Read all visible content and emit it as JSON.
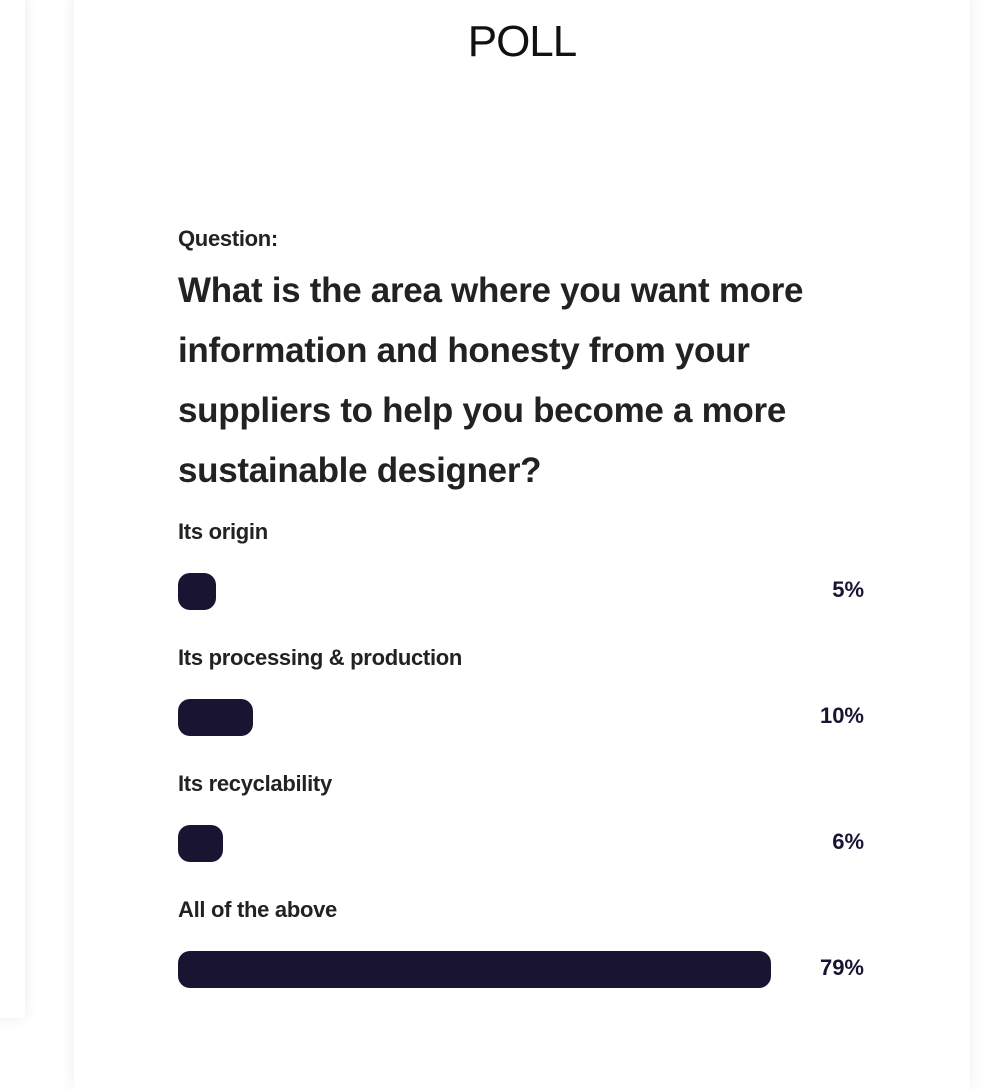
{
  "poll": {
    "title": "POLL",
    "question_label": "Question:",
    "question": "What is the area where you want more information and honesty from your suppliers to help you become a more sustainable designer?",
    "bar_color": "#1a1433",
    "options": [
      {
        "label": "Its origin",
        "percent_text": "5%",
        "percent": 5
      },
      {
        "label": "Its processing & production",
        "percent_text": "10%",
        "percent": 10
      },
      {
        "label": "Its recyclability",
        "percent_text": "6%",
        "percent": 6
      },
      {
        "label": "All of the above",
        "percent_text": "79%",
        "percent": 79
      }
    ]
  }
}
